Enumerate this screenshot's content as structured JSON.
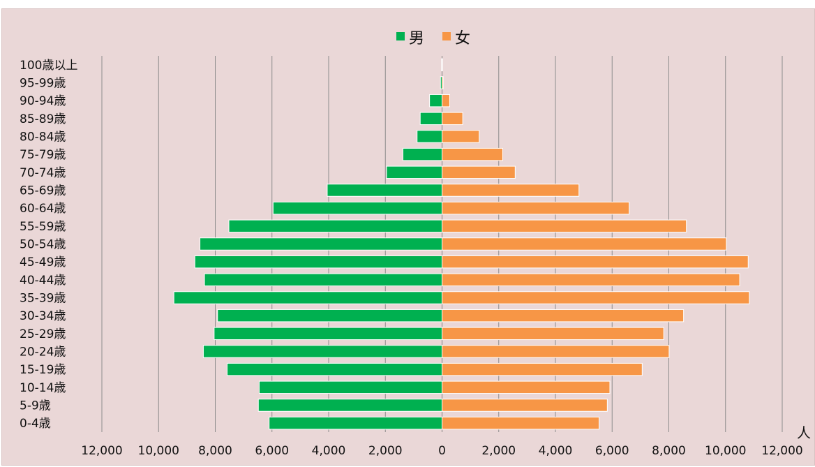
{
  "chart_data": {
    "type": "bar",
    "orientation": "horizontal",
    "layout": "population-pyramid",
    "categories": [
      "0-4歳",
      "5-9歳",
      "10-14歳",
      "15-19歳",
      "20-24歳",
      "25-29歳",
      "30-34歳",
      "35-39歳",
      "40-44歳",
      "45-49歳",
      "50-54歳",
      "55-59歳",
      "60-64歳",
      "65-69歳",
      "70-74歳",
      "75-79歳",
      "80-84歳",
      "85-89歳",
      "90-94歳",
      "95-99歳",
      "100歳以上"
    ],
    "series": [
      {
        "name": "男",
        "color": "#00b050",
        "values": [
          6100,
          6480,
          6450,
          7580,
          8420,
          8040,
          7920,
          9460,
          8380,
          8720,
          8540,
          7520,
          5960,
          4050,
          1960,
          1380,
          880,
          770,
          440,
          55,
          15
        ]
      },
      {
        "name": "女",
        "color": "#f79646",
        "values": [
          5540,
          5830,
          5920,
          7060,
          8010,
          7820,
          8520,
          10840,
          10500,
          10800,
          10030,
          8620,
          6600,
          4830,
          2580,
          2140,
          1310,
          730,
          270,
          40,
          10
        ]
      }
    ],
    "xlim": [
      -12000,
      12000
    ],
    "x_ticks": [
      -12000,
      -10000,
      -8000,
      -6000,
      -4000,
      -2000,
      0,
      2000,
      4000,
      6000,
      8000,
      10000,
      12000
    ],
    "x_tick_labels": [
      "12,000",
      "10,000",
      "8,000",
      "6,000",
      "4,000",
      "2,000",
      "0",
      "2,000",
      "4,000",
      "6,000",
      "8,000",
      "10,000",
      "12,000"
    ],
    "x_unit": "人",
    "grid": "vertical",
    "legend_position": "top"
  }
}
